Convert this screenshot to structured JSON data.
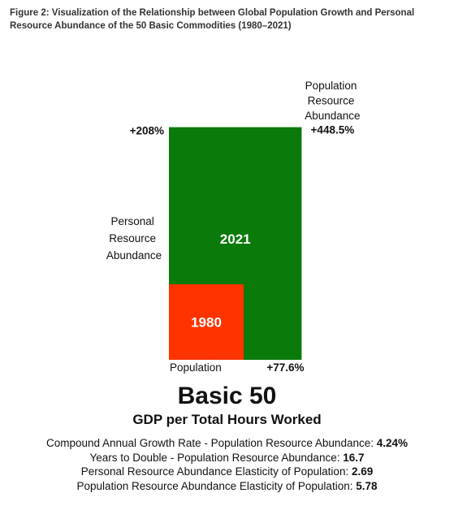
{
  "figure": {
    "title": "Figure 2: Visualization of the Relationship between Global Population Growth and Personal Resource Abundance of the 50 Basic Commodities (1980–2021)"
  },
  "chart_data": {
    "type": "area",
    "description_axes": "nested squares: inner = 1980 baseline, outer = 2021",
    "x_axis_label": "Population",
    "y_axis_label_lines": [
      "Personal",
      "Resource",
      "Abundance"
    ],
    "outer_area_label_lines": [
      "Population",
      "Resource",
      "Abundance"
    ],
    "baseline": {
      "label": "1980",
      "x": 1.0,
      "y": 1.0,
      "area": 1.0
    },
    "current": {
      "label": "2021",
      "x": 1.776,
      "y": 3.08,
      "area": 5.485
    },
    "x_change_label": "+77.6%",
    "y_change_label": "+208%",
    "area_change_label": "+448.5%",
    "colors": {
      "baseline": "#ff3300",
      "current": "#0a7a0a"
    }
  },
  "summary": {
    "title": "Basic 50",
    "subtitle": "GDP per Total Hours Worked",
    "stats": [
      {
        "label": "Compound Annual Growth Rate - Population Resource Abundance: ",
        "value": "4.24%"
      },
      {
        "label": "Years to Double - Population Resource Abundance: ",
        "value": "16.7"
      },
      {
        "label": "Personal Resource Abundance Elasticity of Population: ",
        "value": "2.69"
      },
      {
        "label": "Population Resource Abundance Elasticity of Population: ",
        "value": "5.78"
      }
    ]
  }
}
